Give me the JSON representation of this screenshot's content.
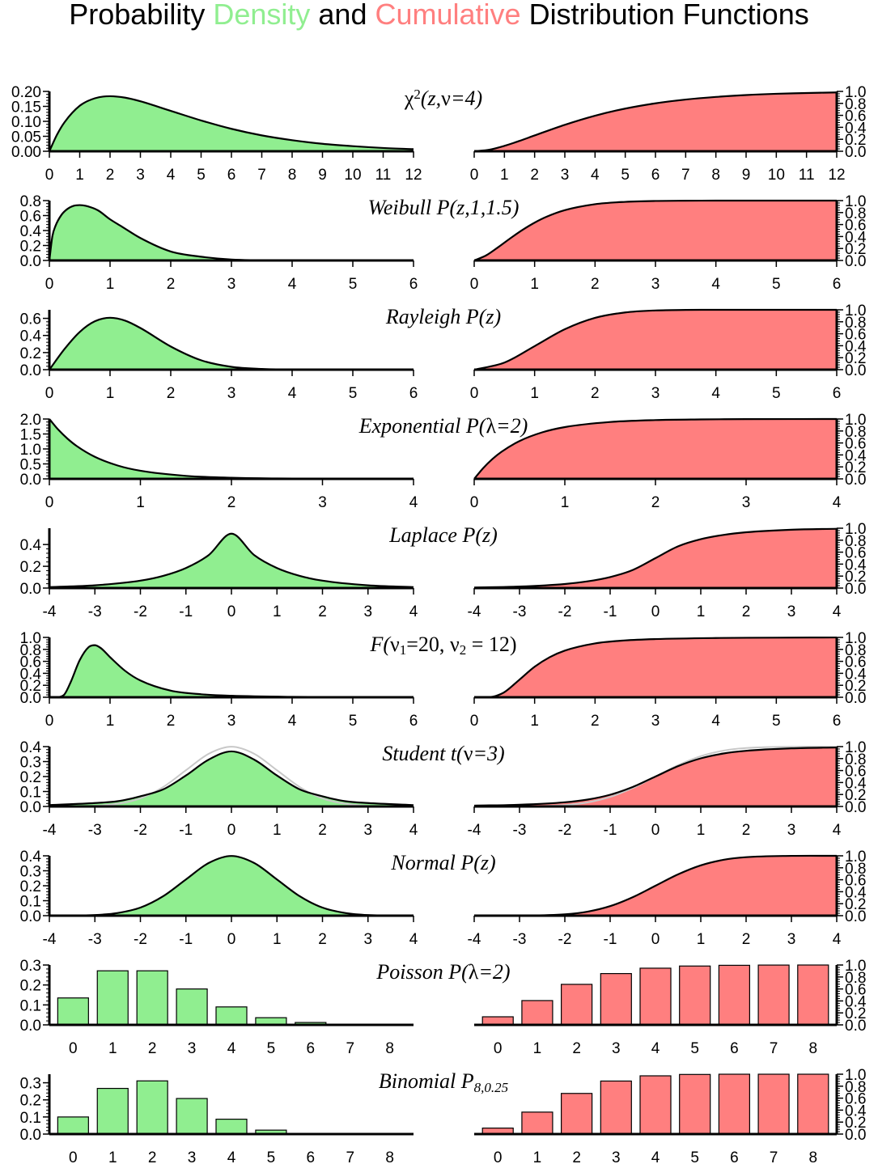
{
  "title": {
    "part1": "Probability ",
    "part2": "Density",
    "part3": " and ",
    "part4": "Cumulative",
    "part5": " Distribution Functions"
  },
  "colors": {
    "density_fill": "#90ee90",
    "cumulative_fill": "#ff7f7f",
    "density_title": "#90ee90",
    "cumulative_title": "#ff7f7f",
    "reference_curve": "#c8c8c8",
    "line": "#000000"
  },
  "chart_data": [
    {
      "id": "chi2",
      "type": "area",
      "title_parts": [
        [
          "χ",
          ""
        ],
        [
          "2",
          "sup"
        ],
        [
          "(z,",
          "i"
        ],
        [
          "ν",
          "g"
        ],
        [
          "=4)",
          "i"
        ]
      ],
      "pdf_yticks": [
        "0.00",
        "0.05",
        "0.10",
        "0.15",
        "0.20"
      ],
      "pdf_ylim": [
        0,
        0.2
      ],
      "cdf_yticks": [
        "0.0",
        "0.2",
        "0.4",
        "0.6",
        "0.8",
        "1.0"
      ],
      "cdf_ylim": [
        0,
        1
      ],
      "xlim": [
        0,
        12
      ],
      "xticks": [
        "0",
        "1",
        "2",
        "3",
        "4",
        "5",
        "6",
        "7",
        "8",
        "9",
        "10",
        "11",
        "12"
      ],
      "pdf": {
        "x": [
          0,
          0.25,
          0.5,
          1,
          1.5,
          2,
          2.5,
          3,
          4,
          5,
          6,
          7,
          8,
          9,
          10,
          11,
          12
        ],
        "y": [
          0,
          0.055,
          0.097,
          0.152,
          0.177,
          0.184,
          0.179,
          0.167,
          0.135,
          0.103,
          0.075,
          0.053,
          0.037,
          0.025,
          0.017,
          0.011,
          0.007
        ]
      },
      "cdf": {
        "x": [
          0,
          0.5,
          1,
          1.5,
          2,
          3,
          4,
          5,
          6,
          7,
          8,
          9,
          10,
          11,
          12
        ],
        "y": [
          0,
          0.026,
          0.09,
          0.173,
          0.264,
          0.442,
          0.594,
          0.713,
          0.801,
          0.864,
          0.908,
          0.939,
          0.96,
          0.973,
          0.983
        ]
      }
    },
    {
      "id": "weibull",
      "type": "area",
      "title_parts": [
        [
          "Weibull P(z,1,1.5)",
          "i"
        ]
      ],
      "pdf_yticks": [
        "0.0",
        "0.2",
        "0.4",
        "0.6",
        "0.8"
      ],
      "pdf_ylim": [
        0,
        0.8
      ],
      "cdf_yticks": [
        "0.0",
        "0.2",
        "0.4",
        "0.6",
        "0.8",
        "1.0"
      ],
      "cdf_ylim": [
        0,
        1
      ],
      "xlim": [
        0,
        6
      ],
      "xticks": [
        "0",
        "1",
        "2",
        "3",
        "4",
        "5",
        "6"
      ],
      "pdf": {
        "x": [
          0,
          0.05,
          0.1,
          0.2,
          0.3,
          0.4,
          0.5,
          0.6,
          0.8,
          1,
          1.2,
          1.5,
          2,
          2.5,
          3,
          4,
          5,
          6
        ],
        "y": [
          0,
          0.325,
          0.46,
          0.61,
          0.69,
          0.73,
          0.74,
          0.73,
          0.67,
          0.55,
          0.45,
          0.3,
          0.12,
          0.05,
          0.013,
          0.001,
          0,
          0
        ]
      },
      "cdf": {
        "x": [
          0,
          0.2,
          0.4,
          0.6,
          0.8,
          1,
          1.2,
          1.5,
          2,
          2.5,
          3,
          3.5,
          4,
          5,
          6
        ],
        "y": [
          0,
          0.086,
          0.224,
          0.372,
          0.511,
          0.632,
          0.731,
          0.84,
          0.94,
          0.979,
          0.994,
          0.998,
          1,
          1,
          1
        ]
      }
    },
    {
      "id": "rayleigh",
      "type": "area",
      "title_parts": [
        [
          "Rayleigh P(z)",
          "i"
        ]
      ],
      "pdf_yticks": [
        "0.0",
        "0.2",
        "0.4",
        "0.6"
      ],
      "pdf_ylim": [
        0,
        0.7
      ],
      "cdf_yticks": [
        "0.0",
        "0.2",
        "0.4",
        "0.6",
        "0.8",
        "1.0"
      ],
      "cdf_ylim": [
        0,
        1
      ],
      "xlim": [
        0,
        6
      ],
      "xticks": [
        "0",
        "1",
        "2",
        "3",
        "4",
        "5",
        "6"
      ],
      "pdf": {
        "x": [
          0,
          0.25,
          0.5,
          0.75,
          1,
          1.25,
          1.5,
          2,
          2.5,
          3,
          3.5,
          4,
          5,
          6
        ],
        "y": [
          0,
          0.242,
          0.441,
          0.566,
          0.607,
          0.573,
          0.487,
          0.271,
          0.11,
          0.033,
          0.008,
          0.001,
          0,
          0
        ]
      },
      "cdf": {
        "x": [
          0,
          0.5,
          1,
          1.5,
          2,
          2.5,
          3,
          3.5,
          4,
          5,
          6
        ],
        "y": [
          0,
          0.118,
          0.393,
          0.675,
          0.865,
          0.956,
          0.989,
          0.998,
          1,
          1,
          1
        ]
      }
    },
    {
      "id": "exponential",
      "type": "area",
      "title_parts": [
        [
          "Exponential P(",
          "i"
        ],
        [
          "λ",
          "g"
        ],
        [
          "=2)",
          "i"
        ]
      ],
      "pdf_yticks": [
        "0.0",
        "0.5",
        "1.0",
        "1.5",
        "2.0"
      ],
      "pdf_ylim": [
        0,
        2
      ],
      "cdf_yticks": [
        "0.0",
        "0.2",
        "0.4",
        "0.6",
        "0.8",
        "1.0"
      ],
      "cdf_ylim": [
        0,
        1
      ],
      "xlim": [
        0,
        4
      ],
      "xticks": [
        "0",
        "1",
        "2",
        "3",
        "4"
      ],
      "pdf": {
        "x": [
          0,
          0.1,
          0.2,
          0.3,
          0.5,
          0.75,
          1,
          1.5,
          2,
          2.5,
          3,
          4
        ],
        "y": [
          2,
          1.637,
          1.341,
          1.098,
          0.736,
          0.446,
          0.271,
          0.1,
          0.037,
          0.013,
          0.005,
          0.001
        ]
      },
      "cdf": {
        "x": [
          0,
          0.1,
          0.2,
          0.3,
          0.5,
          0.75,
          1,
          1.5,
          2,
          2.5,
          3,
          4
        ],
        "y": [
          0,
          0.181,
          0.33,
          0.451,
          0.632,
          0.777,
          0.865,
          0.95,
          0.982,
          0.993,
          0.998,
          1
        ]
      }
    },
    {
      "id": "laplace",
      "type": "area",
      "title_parts": [
        [
          "Laplace P(z)",
          "i"
        ]
      ],
      "pdf_yticks": [
        "0.0",
        "0.2",
        "0.4"
      ],
      "pdf_ylim": [
        0,
        0.55
      ],
      "cdf_yticks": [
        "0.0",
        "0.2",
        "0.4",
        "0.6",
        "0.8",
        "1.0"
      ],
      "cdf_ylim": [
        0,
        1
      ],
      "xlim": [
        -4,
        4
      ],
      "xticks": [
        "-4",
        "-3",
        "-2",
        "-1",
        "0",
        "1",
        "2",
        "3",
        "4"
      ],
      "pdf": {
        "x": [
          -4,
          -3,
          -2,
          -1.5,
          -1,
          -0.5,
          0,
          0.5,
          1,
          1.5,
          2,
          3,
          4
        ],
        "y": [
          0.009,
          0.025,
          0.068,
          0.112,
          0.184,
          0.303,
          0.5,
          0.303,
          0.184,
          0.112,
          0.068,
          0.025,
          0.009
        ]
      },
      "cdf": {
        "x": [
          -4,
          -3,
          -2,
          -1.5,
          -1,
          -0.5,
          0,
          0.5,
          1,
          1.5,
          2,
          3,
          4
        ],
        "y": [
          0.009,
          0.025,
          0.068,
          0.112,
          0.184,
          0.303,
          0.5,
          0.697,
          0.816,
          0.888,
          0.932,
          0.975,
          0.991
        ]
      }
    },
    {
      "id": "fdist",
      "type": "area",
      "title_parts": [
        [
          "F(",
          "i"
        ],
        [
          "ν",
          "g"
        ],
        [
          "1",
          "sub"
        ],
        [
          "=20, ",
          ""
        ],
        [
          "ν",
          "g"
        ],
        [
          "2",
          "sub"
        ],
        [
          " = 12)",
          ""
        ]
      ],
      "pdf_yticks": [
        "0.0",
        "0.2",
        "0.4",
        "0.6",
        "0.8",
        "1.0"
      ],
      "pdf_ylim": [
        0,
        1
      ],
      "cdf_yticks": [
        "0.0",
        "0.2",
        "0.4",
        "0.6",
        "0.8",
        "1.0"
      ],
      "cdf_ylim": [
        0,
        1
      ],
      "xlim": [
        0,
        6
      ],
      "xticks": [
        "0",
        "1",
        "2",
        "3",
        "4",
        "5",
        "6"
      ],
      "pdf": {
        "x": [
          0,
          0.15,
          0.25,
          0.35,
          0.5,
          0.65,
          0.75,
          0.85,
          1,
          1.25,
          1.5,
          2,
          2.5,
          3,
          4,
          5,
          6
        ],
        "y": [
          0,
          0.002,
          0.05,
          0.25,
          0.62,
          0.84,
          0.87,
          0.82,
          0.67,
          0.44,
          0.28,
          0.11,
          0.05,
          0.025,
          0.007,
          0.003,
          0.001
        ]
      },
      "cdf": {
        "x": [
          0,
          0.25,
          0.35,
          0.5,
          0.75,
          1,
          1.25,
          1.5,
          2,
          2.5,
          3,
          4,
          5,
          6
        ],
        "y": [
          0,
          0.002,
          0.02,
          0.085,
          0.295,
          0.51,
          0.67,
          0.78,
          0.9,
          0.95,
          0.972,
          0.99,
          0.996,
          0.999
        ]
      }
    },
    {
      "id": "student",
      "type": "area",
      "title_parts": [
        [
          "Student t(",
          "i"
        ],
        [
          "ν",
          "g"
        ],
        [
          "=3)",
          "i"
        ]
      ],
      "pdf_yticks": [
        "0.0",
        "0.1",
        "0.2",
        "0.3",
        "0.4"
      ],
      "pdf_ylim": [
        0,
        0.4
      ],
      "cdf_yticks": [
        "0.0",
        "0.2",
        "0.4",
        "0.6",
        "0.8",
        "1.0"
      ],
      "cdf_ylim": [
        0,
        1
      ],
      "xlim": [
        -4,
        4
      ],
      "xticks": [
        "-4",
        "-3",
        "-2",
        "-1",
        "0",
        "1",
        "2",
        "3",
        "4"
      ],
      "pdf": {
        "x": [
          -4,
          -3,
          -2.5,
          -2,
          -1.5,
          -1,
          -0.5,
          0,
          0.5,
          1,
          1.5,
          2,
          2.5,
          3,
          4
        ],
        "y": [
          0.009,
          0.023,
          0.035,
          0.068,
          0.114,
          0.207,
          0.313,
          0.368,
          0.313,
          0.207,
          0.114,
          0.068,
          0.035,
          0.023,
          0.009
        ]
      },
      "cdf": {
        "x": [
          -4,
          -3,
          -2,
          -1.5,
          -1,
          -0.5,
          0,
          0.5,
          1,
          1.5,
          2,
          3,
          4
        ],
        "y": [
          0.014,
          0.029,
          0.07,
          0.115,
          0.196,
          0.326,
          0.5,
          0.674,
          0.804,
          0.885,
          0.93,
          0.971,
          0.986
        ]
      },
      "ref_pdf": {
        "x": [
          -4,
          -3,
          -2.5,
          -2,
          -1.5,
          -1,
          -0.5,
          0,
          0.5,
          1,
          1.5,
          2,
          2.5,
          3,
          4
        ],
        "y": [
          0,
          0.004,
          0.018,
          0.054,
          0.13,
          0.242,
          0.352,
          0.399,
          0.352,
          0.242,
          0.13,
          0.054,
          0.018,
          0.004,
          0
        ]
      },
      "ref_cdf": {
        "x": [
          -4,
          -3,
          -2,
          -1.5,
          -1,
          -0.5,
          0,
          0.5,
          1,
          1.5,
          2,
          3,
          4
        ],
        "y": [
          0,
          0.001,
          0.023,
          0.067,
          0.159,
          0.309,
          0.5,
          0.691,
          0.841,
          0.933,
          0.977,
          0.999,
          1
        ]
      }
    },
    {
      "id": "normal",
      "type": "area",
      "title_parts": [
        [
          "Normal P(z)",
          "i"
        ]
      ],
      "pdf_yticks": [
        "0.0",
        "0.1",
        "0.2",
        "0.3",
        "0.4"
      ],
      "pdf_ylim": [
        0,
        0.4
      ],
      "cdf_yticks": [
        "0.0",
        "0.2",
        "0.4",
        "0.6",
        "0.8",
        "1.0"
      ],
      "cdf_ylim": [
        0,
        1
      ],
      "xlim": [
        -4,
        4
      ],
      "xticks": [
        "-4",
        "-3",
        "-2",
        "-1",
        "0",
        "1",
        "2",
        "3",
        "4"
      ],
      "pdf": {
        "x": [
          -4,
          -3,
          -2.5,
          -2,
          -1.5,
          -1,
          -0.5,
          0,
          0.5,
          1,
          1.5,
          2,
          2.5,
          3,
          4
        ],
        "y": [
          0,
          0.004,
          0.018,
          0.054,
          0.13,
          0.242,
          0.352,
          0.399,
          0.352,
          0.242,
          0.13,
          0.054,
          0.018,
          0.004,
          0
        ]
      },
      "cdf": {
        "x": [
          -4,
          -3,
          -2,
          -1.5,
          -1,
          -0.5,
          0,
          0.5,
          1,
          1.5,
          2,
          3,
          4
        ],
        "y": [
          0,
          0.001,
          0.023,
          0.067,
          0.159,
          0.309,
          0.5,
          0.691,
          0.841,
          0.933,
          0.977,
          0.999,
          1
        ]
      }
    },
    {
      "id": "poisson",
      "type": "bar",
      "title_parts": [
        [
          "Poisson P(",
          "i"
        ],
        [
          "λ",
          "g"
        ],
        [
          "=2)",
          "i"
        ]
      ],
      "pdf_yticks": [
        "0.0",
        "0.1",
        "0.2",
        "0.3"
      ],
      "pdf_ylim": [
        0,
        0.3
      ],
      "cdf_yticks": [
        "0.0",
        "0.2",
        "0.4",
        "0.6",
        "0.8",
        "1.0"
      ],
      "cdf_ylim": [
        0,
        1
      ],
      "categories": [
        "0",
        "1",
        "2",
        "3",
        "4",
        "5",
        "6",
        "7",
        "8"
      ],
      "pdf_values": [
        0.135,
        0.271,
        0.271,
        0.18,
        0.09,
        0.036,
        0.012,
        0.003,
        0.001
      ],
      "cdf_values": [
        0.135,
        0.406,
        0.677,
        0.857,
        0.947,
        0.983,
        0.995,
        0.999,
        1.0
      ]
    },
    {
      "id": "binomial",
      "type": "bar",
      "title_parts": [
        [
          "Binomial P",
          "i"
        ],
        [
          "8,0.25",
          "isub"
        ]
      ],
      "pdf_yticks": [
        "0.0",
        "0.1",
        "0.2",
        "0.3"
      ],
      "pdf_ylim": [
        0,
        0.35
      ],
      "cdf_yticks": [
        "0.0",
        "0.2",
        "0.4",
        "0.6",
        "0.8",
        "1.0"
      ],
      "cdf_ylim": [
        0,
        1
      ],
      "categories": [
        "0",
        "1",
        "2",
        "3",
        "4",
        "5",
        "6",
        "7",
        "8"
      ],
      "pdf_values": [
        0.1,
        0.267,
        0.311,
        0.208,
        0.087,
        0.023,
        0.004,
        0.0004,
        0.0
      ],
      "cdf_values": [
        0.1,
        0.367,
        0.679,
        0.886,
        0.973,
        0.996,
        1.0,
        1.0,
        1.0
      ]
    }
  ]
}
